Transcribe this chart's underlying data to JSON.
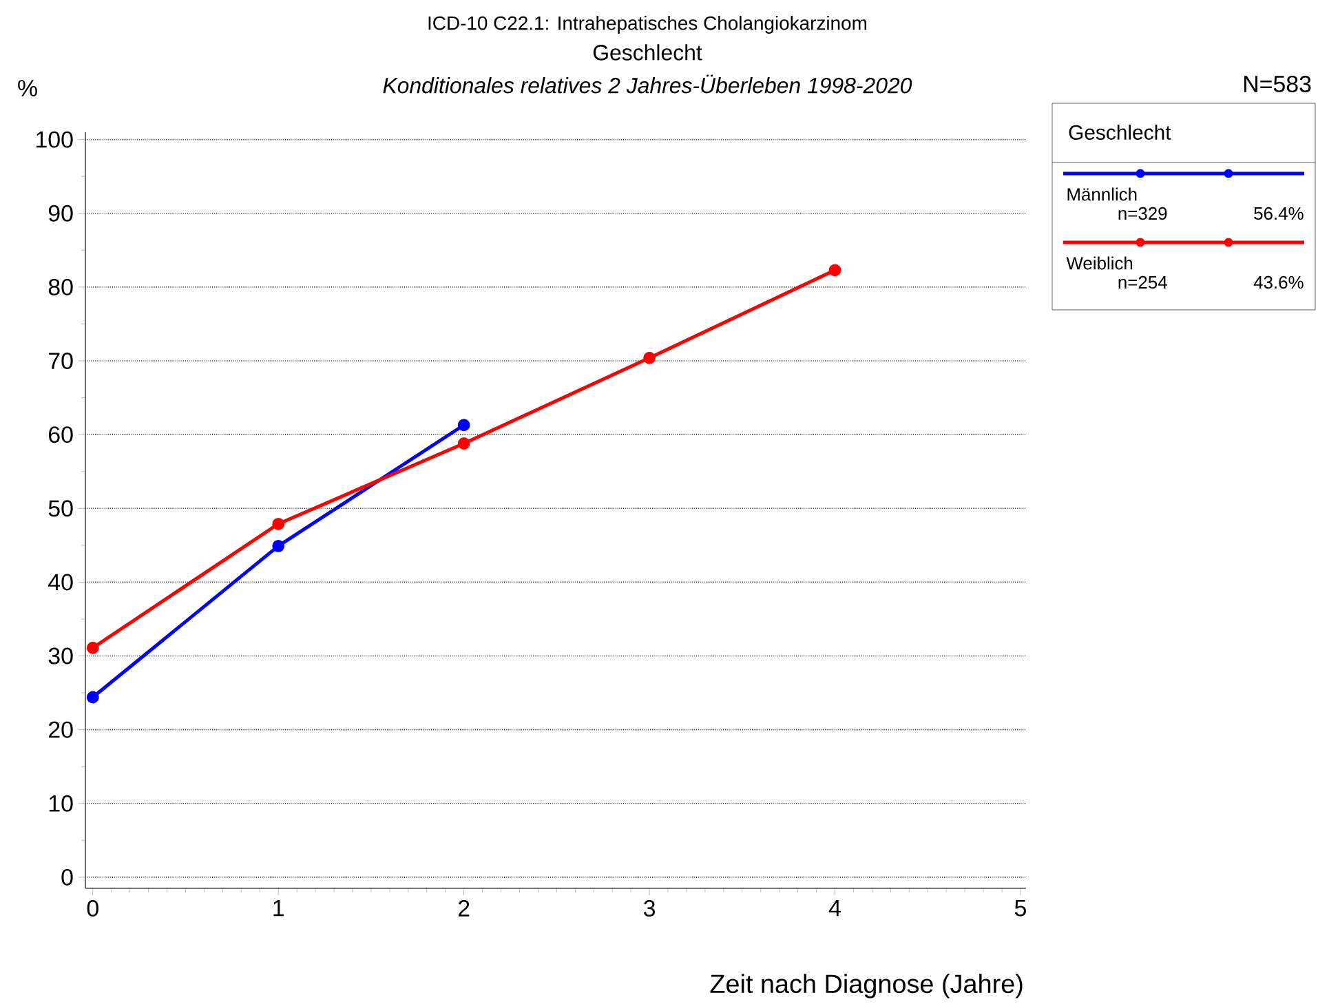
{
  "chart_data": {
    "type": "line",
    "title": "ICD-10 C22.1: Intrahepatisches Cholangiokarzinom",
    "subtitle": "Geschlecht",
    "annotations": [
      "*Konditionales relatives 2 Jahres-Überleben 1998-2020*",
      "N=583",
      "n=329",
      "56.4%",
      "n=254",
      "43.6%"
    ],
    "xlabel": "Zeit nach Diagnose (Jahre)",
    "ylabel": "%",
    "legend_title": "Geschlecht",
    "series": [
      {
        "name": "Männlich",
        "color": "#0000ff",
        "x": [
          0,
          1,
          2
        ],
        "values": [
          24.4,
          44.9,
          61.3
        ]
      },
      {
        "name": "Weiblich",
        "color": "#ff0000",
        "x": [
          0,
          1,
          2,
          3,
          4
        ],
        "values": [
          31.1,
          47.9,
          58.8,
          70.4,
          82.3
        ]
      }
    ],
    "xlim": [
      -0.04,
      5.03
    ],
    "ylim": [
      -1.5,
      101
    ],
    "xticks": [
      0,
      1,
      2,
      3,
      4,
      5
    ],
    "yticks": [
      0,
      10,
      20,
      30,
      40,
      50,
      60,
      70,
      80,
      90,
      100
    ],
    "grid": "y",
    "legend": "top right",
    "marker": "circle",
    "line_style": "solid"
  }
}
